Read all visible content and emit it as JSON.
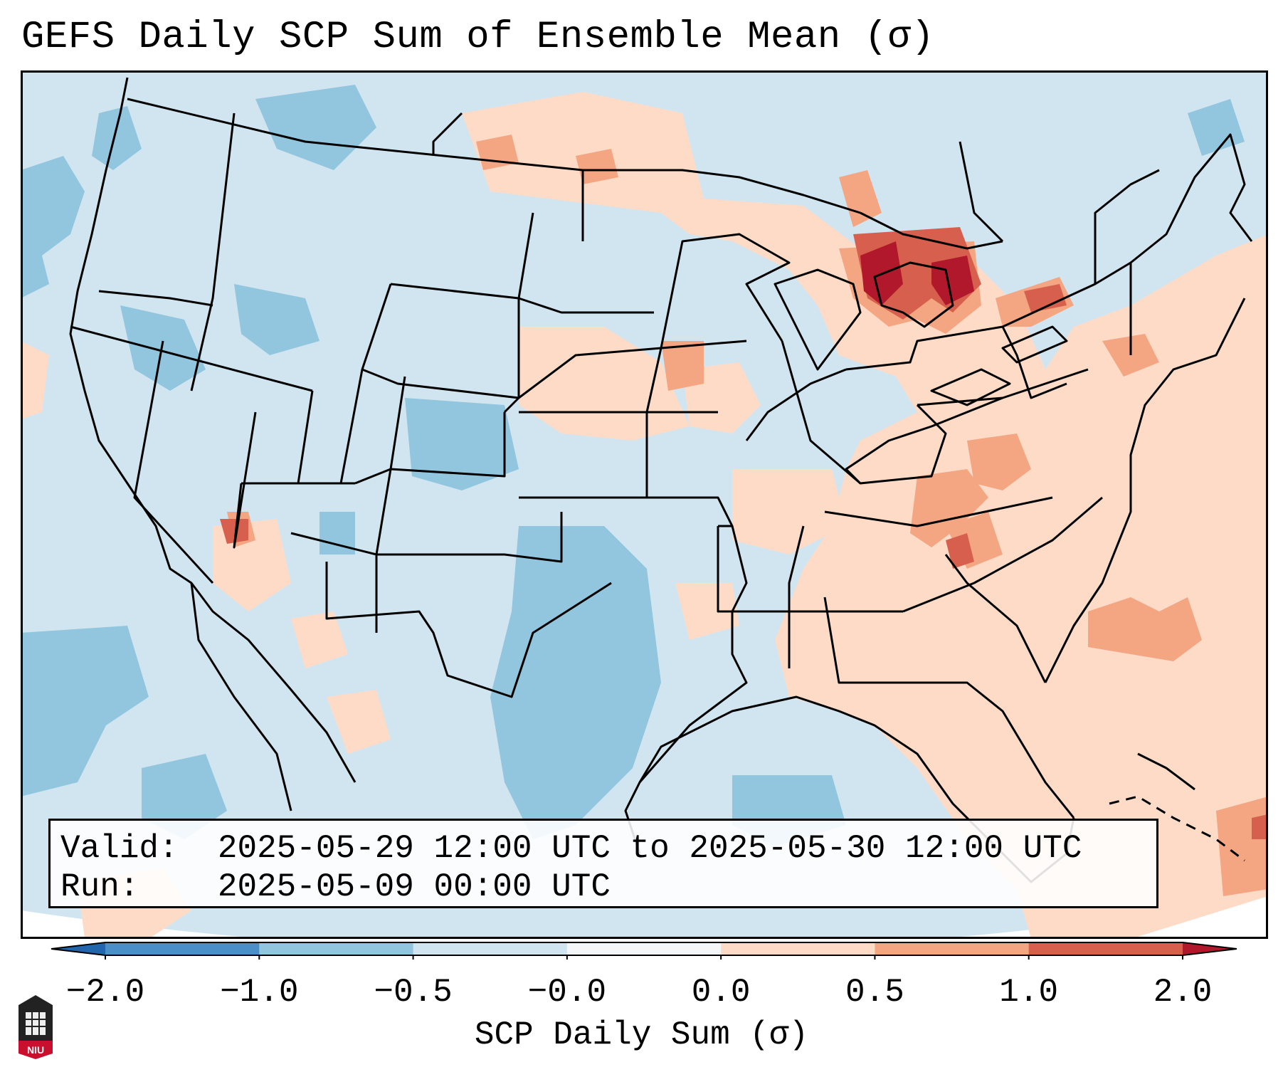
{
  "title": "GEFS Daily SCP Sum of Ensemble Mean (σ)",
  "info": {
    "valid_label": "Valid:",
    "valid_value": "2025-05-29 12:00 UTC to 2025-05-30 12:00 UTC",
    "run_label": "Run:",
    "run_value": "2025-05-09 00:00 UTC"
  },
  "colorbar": {
    "label": "SCP Daily Sum (σ)",
    "ticks": [
      "−2.0",
      "−1.0",
      "−0.5",
      "−0.0",
      "0.0",
      "0.5",
      "1.0",
      "2.0"
    ],
    "bins": [
      {
        "color": "#4a8fc8"
      },
      {
        "color": "#92c5de"
      },
      {
        "color": "#d1e5f0"
      },
      {
        "color": "#f4f6f8"
      },
      {
        "color": "#fddbc7"
      },
      {
        "color": "#f4a582"
      },
      {
        "color": "#d6604d"
      }
    ],
    "extend_low_color": "#2166ac",
    "extend_high_color": "#b2182b"
  },
  "map": {
    "background_color": "#d1e5f0",
    "projection": "conus lambert conformal",
    "features": "state and country borders, coastlines"
  },
  "logo": {
    "text": "NIU",
    "color": "#c8102e"
  }
}
